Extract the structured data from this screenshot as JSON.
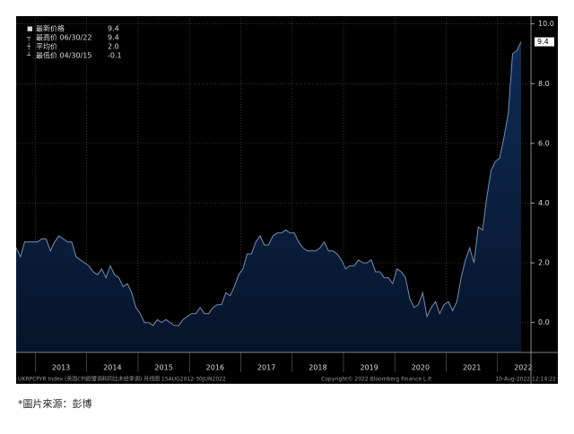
{
  "chart_data": {
    "type": "area",
    "legend": [
      {
        "label": "最新价格",
        "value": "9.4"
      },
      {
        "label": "最高价 06/30/22",
        "value": "9.4"
      },
      {
        "label": "平均价",
        "value": "2.0"
      },
      {
        "label": "最低价 04/30/15",
        "value": "-0.1"
      }
    ],
    "last_value_label": "9.4",
    "values": [
      2.5,
      2.2,
      2.7,
      2.7,
      2.7,
      2.7,
      2.8,
      2.8,
      2.4,
      2.7,
      2.9,
      2.8,
      2.7,
      2.7,
      2.2,
      2.1,
      2.0,
      1.9,
      1.7,
      1.6,
      1.8,
      1.5,
      1.9,
      1.6,
      1.5,
      1.2,
      1.3,
      1.0,
      0.5,
      0.3,
      0.0,
      0.0,
      -0.1,
      0.1,
      0.0,
      0.1,
      0.0,
      -0.1,
      -0.1,
      0.1,
      0.2,
      0.3,
      0.3,
      0.5,
      0.3,
      0.3,
      0.5,
      0.6,
      0.6,
      1.0,
      0.9,
      1.2,
      1.6,
      1.8,
      2.3,
      2.3,
      2.7,
      2.9,
      2.6,
      2.6,
      2.9,
      3.0,
      3.0,
      3.1,
      3.0,
      3.0,
      2.7,
      2.5,
      2.4,
      2.4,
      2.4,
      2.5,
      2.7,
      2.4,
      2.4,
      2.3,
      2.1,
      1.8,
      1.9,
      1.9,
      2.1,
      2.0,
      2.0,
      2.1,
      1.7,
      1.7,
      1.5,
      1.5,
      1.3,
      1.8,
      1.7,
      1.5,
      0.8,
      0.5,
      0.6,
      1.0,
      0.2,
      0.5,
      0.7,
      0.3,
      0.6,
      0.7,
      0.4,
      0.7,
      1.5,
      2.1,
      2.5,
      2.0,
      3.2,
      3.1,
      4.2,
      5.1,
      5.4,
      5.5,
      6.2,
      7.0,
      9.0,
      9.1,
      9.4
    ],
    "color": "#0e2c55",
    "line_color": "#6f8fb8",
    "xticks": [
      2013,
      2014,
      2015,
      2016,
      2017,
      2018,
      2019,
      2020,
      2021,
      2022
    ],
    "ylim": [
      -1,
      10.2
    ],
    "yticks": [
      {
        "value": 0,
        "label": "0.0"
      },
      {
        "value": 2,
        "label": "2.0"
      },
      {
        "value": 4,
        "label": "4.0"
      },
      {
        "value": 6,
        "label": "6.0"
      },
      {
        "value": 8,
        "label": "8.0"
      },
      {
        "value": 10,
        "label": "10.0"
      }
    ],
    "grid": true,
    "footer": [
      "UKRPCPYR Index (英国CPI欧盟调和同比未经季调) 月线图 15AUG2012-30JUN2022",
      "Copyright© 2022 Bloomberg Finance L.P.",
      "10-Aug-2022 12:14:22"
    ],
    "caption": "*圖片來源：彭博"
  }
}
